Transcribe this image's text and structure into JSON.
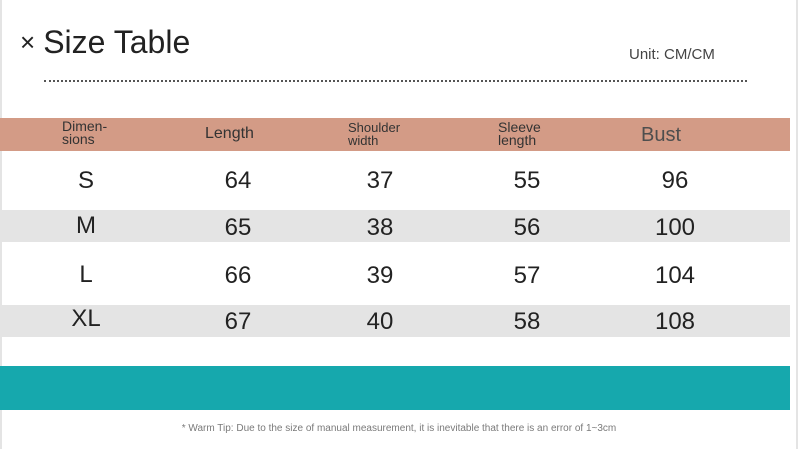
{
  "title": {
    "mark": "×",
    "text": "Size Table"
  },
  "unit": "Unit: CM/CM",
  "colors": {
    "header_band": "#d39b86",
    "stripe": "#e4e4e4",
    "footer_band": "#16a8ad"
  },
  "table": {
    "headers": {
      "dimensions": [
        "Dimen-",
        "sions"
      ],
      "length": "Length",
      "shoulder": [
        "Shoulder",
        "width"
      ],
      "sleeve": [
        "Sleeve",
        "length"
      ],
      "bust": "Bust"
    },
    "rows": [
      {
        "size": "S",
        "length": "64",
        "shoulder": "37",
        "sleeve": "55",
        "bust": "96"
      },
      {
        "size": "M",
        "length": "65",
        "shoulder": "38",
        "sleeve": "56",
        "bust": "100"
      },
      {
        "size": "L",
        "length": "66",
        "shoulder": "39",
        "sleeve": "57",
        "bust": "104"
      },
      {
        "size": "XL",
        "length": "67",
        "shoulder": "40",
        "sleeve": "58",
        "bust": "108"
      }
    ]
  },
  "tip": "* Warm Tip: Due to the size of manual measurement, it is inevitable that there is an error of 1~3cm"
}
